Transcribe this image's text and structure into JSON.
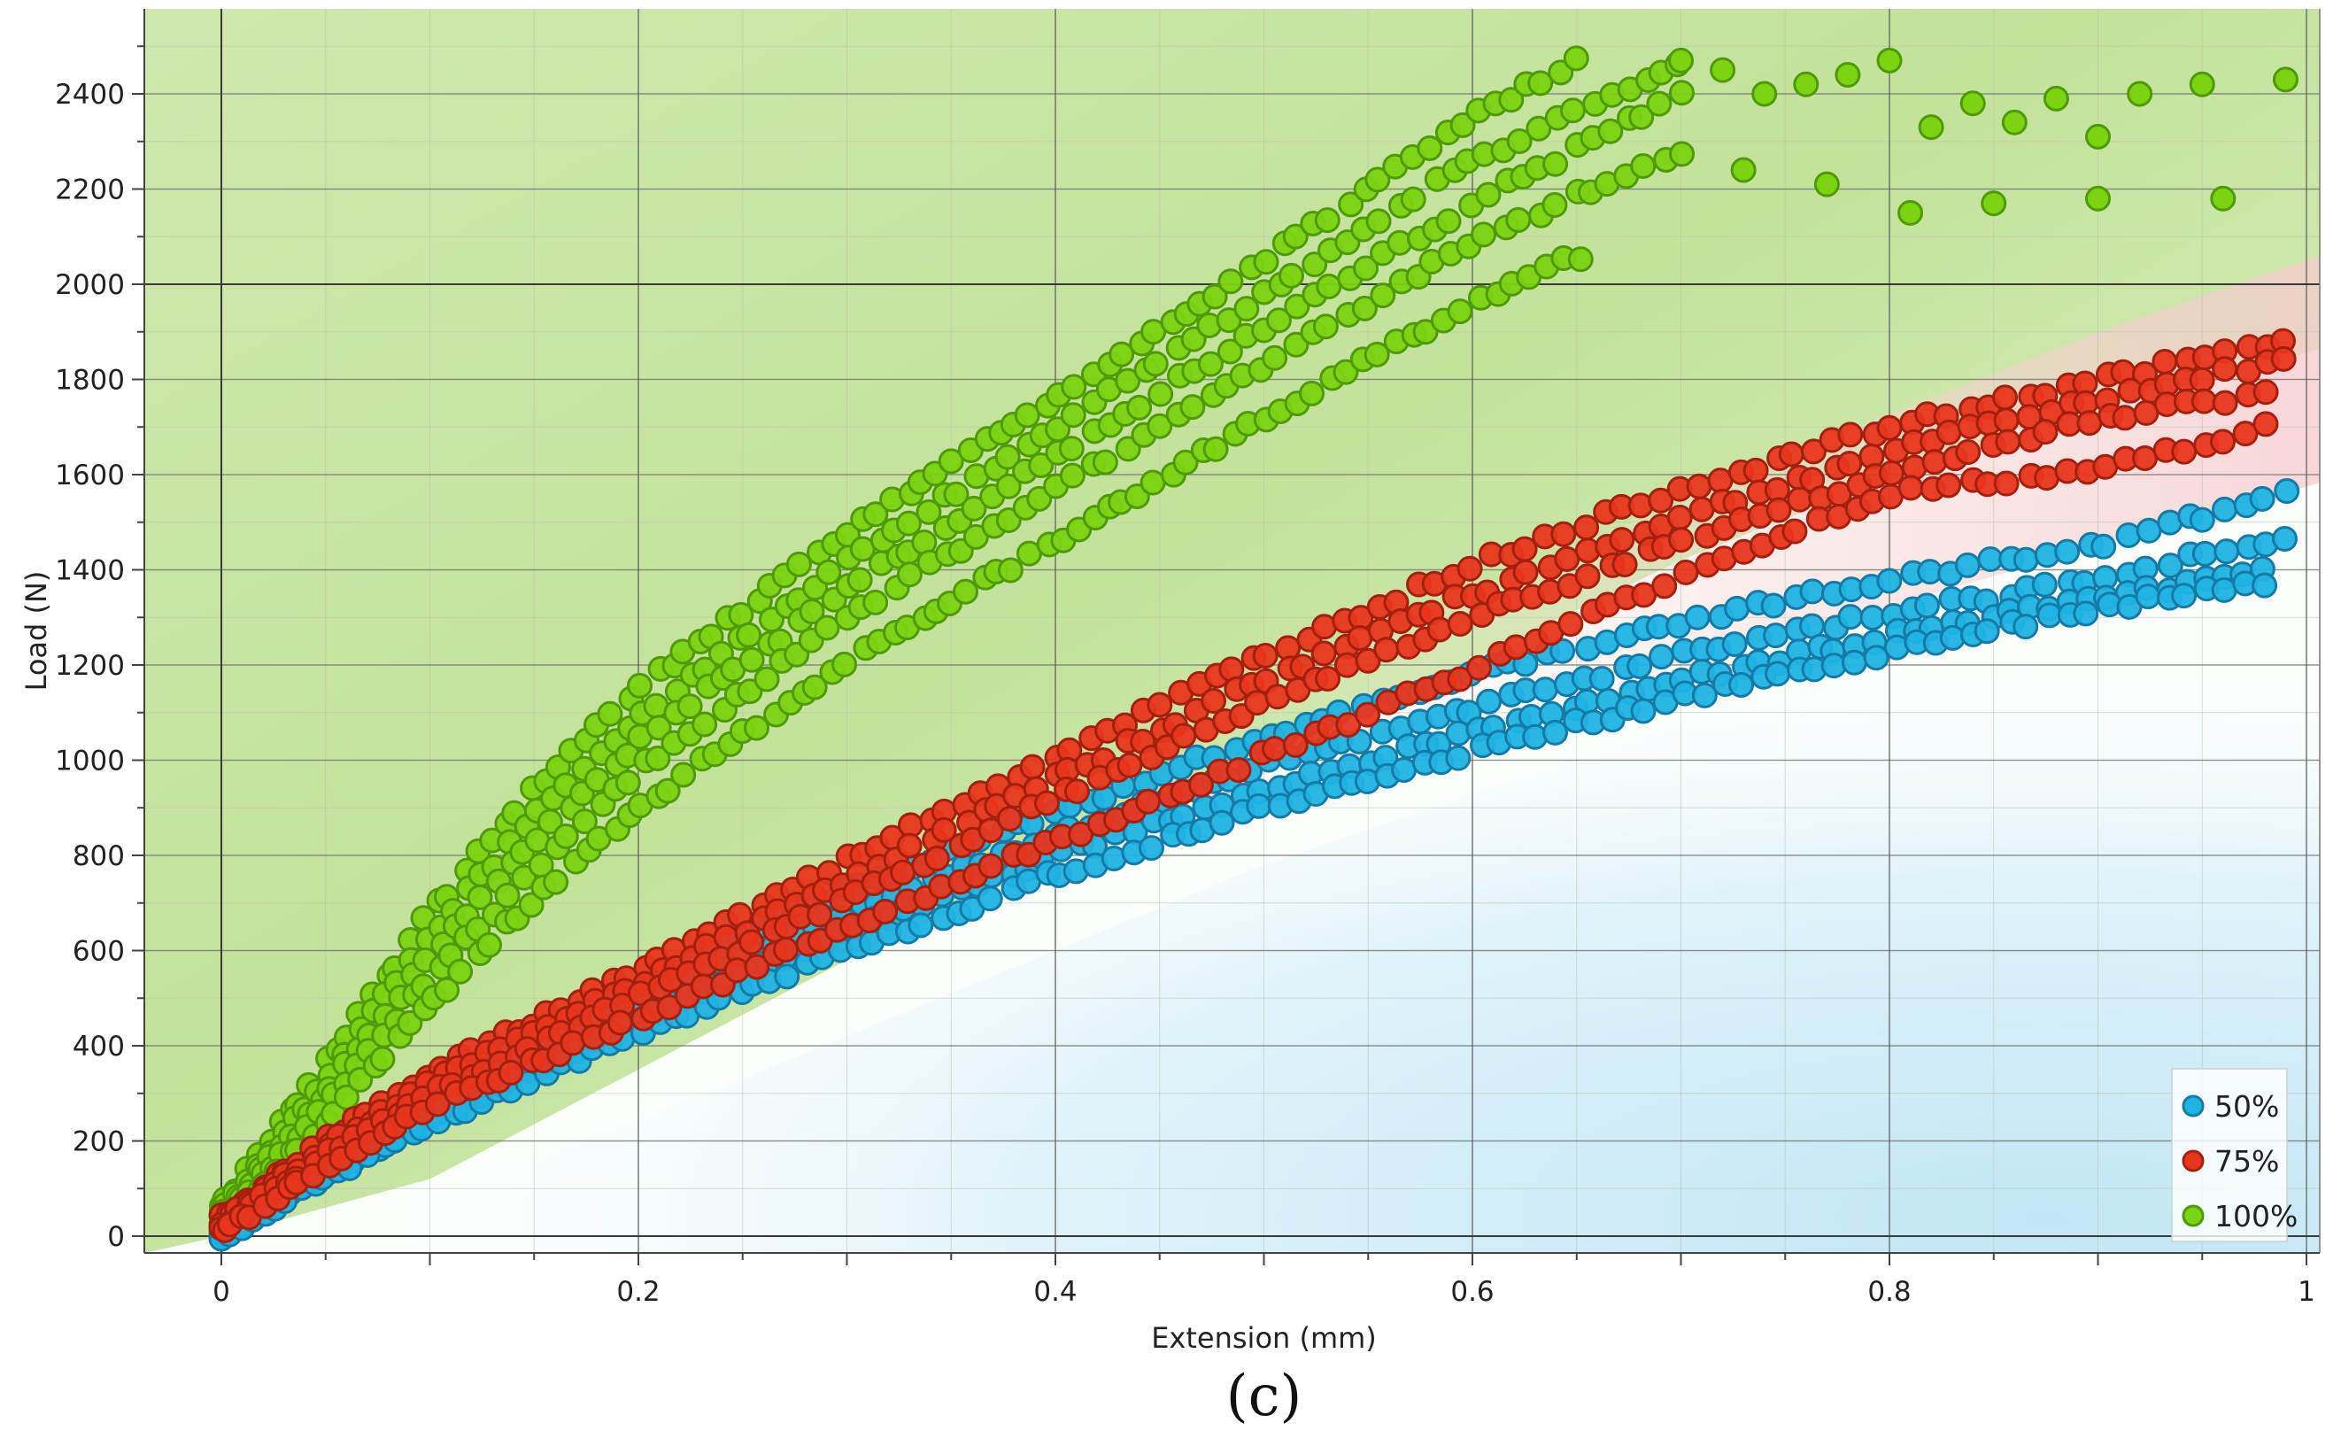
{
  "panel_label": "(c)",
  "colors": {
    "series_50": "#1fb3e3",
    "series_75": "#e8361e",
    "series_100": "#7bd311",
    "series_50_edge": "#167aa6",
    "series_75_edge": "#a3200f",
    "series_100_edge": "#4e9a0a"
  },
  "chart_data": {
    "type": "scatter",
    "title": "",
    "xlabel": "Extension (mm)",
    "ylabel": "Load (N)",
    "xlim": [
      -0.06,
      1.02
    ],
    "ylim": [
      -40,
      2570
    ],
    "x_ticks": [
      0,
      0.2,
      0.4,
      0.6,
      0.8,
      1
    ],
    "x_tick_labels": [
      "0",
      "0.2",
      "0.4",
      "0.6",
      "0.8",
      "1"
    ],
    "y_ticks": [
      0,
      200,
      400,
      600,
      800,
      1000,
      1200,
      1400,
      1600,
      1800,
      2000,
      2200,
      2400
    ],
    "y_tick_labels": [
      "0",
      "200",
      "400",
      "600",
      "800",
      "1000",
      "1200",
      "1400",
      "1600",
      "1800",
      "2000",
      "2200",
      "2400"
    ],
    "grid": true,
    "legend_position": "bottom-right",
    "legend": [
      "50%",
      "75%",
      "100%"
    ],
    "series": [
      {
        "name": "50%",
        "color": "#1fb3e3",
        "curves": [
          {
            "x": [
              0,
              0.05,
              0.1,
              0.2,
              0.3,
              0.4,
              0.5,
              0.6,
              0.7,
              0.8,
              0.9,
              0.99
            ],
            "y": [
              0,
              150,
              290,
              530,
              730,
              890,
              1050,
              1180,
              1290,
              1380,
              1450,
              1560
            ]
          },
          {
            "x": [
              0,
              0.05,
              0.1,
              0.2,
              0.3,
              0.4,
              0.5,
              0.6,
              0.7,
              0.8,
              0.9,
              0.99
            ],
            "y": [
              0,
              140,
              270,
              490,
              680,
              840,
              990,
              1110,
              1220,
              1310,
              1380,
              1470
            ]
          },
          {
            "x": [
              0,
              0.05,
              0.1,
              0.2,
              0.3,
              0.4,
              0.5,
              0.6,
              0.7,
              0.8,
              0.9,
              0.98
            ],
            "y": [
              0,
              130,
              250,
              460,
              640,
              800,
              940,
              1060,
              1170,
              1260,
              1340,
              1400
            ]
          },
          {
            "x": [
              0,
              0.05,
              0.1,
              0.2,
              0.3,
              0.4,
              0.5,
              0.6,
              0.7,
              0.8,
              0.9,
              0.98
            ],
            "y": [
              0,
              120,
              235,
              430,
              600,
              760,
              900,
              1020,
              1130,
              1230,
              1320,
              1370
            ]
          }
        ]
      },
      {
        "name": "75%",
        "color": "#e8361e",
        "curves": [
          {
            "x": [
              0,
              0.05,
              0.1,
              0.2,
              0.3,
              0.4,
              0.5,
              0.6,
              0.7,
              0.8,
              0.9,
              0.99
            ],
            "y": [
              40,
              200,
              340,
              560,
              790,
              1010,
              1220,
              1410,
              1570,
              1700,
              1800,
              1880
            ]
          },
          {
            "x": [
              0,
              0.05,
              0.1,
              0.2,
              0.3,
              0.4,
              0.5,
              0.6,
              0.7,
              0.8,
              0.9,
              0.99
            ],
            "y": [
              30,
              185,
              320,
              530,
              750,
              960,
              1170,
              1350,
              1510,
              1650,
              1760,
              1840
            ]
          },
          {
            "x": [
              0,
              0.05,
              0.1,
              0.2,
              0.3,
              0.4,
              0.5,
              0.6,
              0.7,
              0.8,
              0.9,
              0.98
            ],
            "y": [
              20,
              170,
              300,
              500,
              710,
              920,
              1120,
              1300,
              1460,
              1600,
              1720,
              1770
            ]
          },
          {
            "x": [
              0,
              0.05,
              0.1,
              0.2,
              0.3,
              0.35,
              0.4,
              0.5,
              0.6,
              0.7,
              0.8,
              0.9,
              0.98
            ],
            "y": [
              10,
              150,
              270,
              460,
              650,
              740,
              830,
              1010,
              1190,
              1390,
              1560,
              1610,
              1700
            ]
          }
        ]
      },
      {
        "name": "100%",
        "color": "#7bd311",
        "curves": [
          {
            "x": [
              0,
              0.05,
              0.1,
              0.15,
              0.2,
              0.3,
              0.4,
              0.5,
              0.6,
              0.65
            ],
            "y": [
              60,
              360,
              680,
              940,
              1150,
              1480,
              1760,
              2050,
              2350,
              2470
            ]
          },
          {
            "x": [
              0,
              0.05,
              0.1,
              0.15,
              0.2,
              0.3,
              0.4,
              0.5,
              0.6,
              0.7
            ],
            "y": [
              50,
              330,
              630,
              880,
              1090,
              1420,
              1700,
              1980,
              2260,
              2460
            ]
          },
          {
            "x": [
              0,
              0.05,
              0.1,
              0.15,
              0.2,
              0.3,
              0.4,
              0.5,
              0.6,
              0.7
            ],
            "y": [
              40,
              300,
              590,
              830,
              1040,
              1360,
              1640,
              1910,
              2170,
              2400
            ]
          },
          {
            "x": [
              0,
              0.05,
              0.1,
              0.15,
              0.2,
              0.3,
              0.4,
              0.5,
              0.6,
              0.7
            ],
            "y": [
              30,
              270,
              540,
              770,
              980,
              1300,
              1570,
              1830,
              2090,
              2280
            ]
          },
          {
            "x": [
              0,
              0.05,
              0.1,
              0.15,
              0.2,
              0.3,
              0.4,
              0.5,
              0.6,
              0.65
            ],
            "y": [
              20,
              240,
              490,
              710,
              900,
              1210,
              1460,
              1720,
              1960,
              2060
            ]
          }
        ],
        "scatter_tail": {
          "x": [
            0.7,
            0.72,
            0.74,
            0.76,
            0.78,
            0.8,
            0.82,
            0.84,
            0.86,
            0.88,
            0.9,
            0.92,
            0.95,
            0.99,
            0.73,
            0.77,
            0.81,
            0.85,
            0.9,
            0.96
          ],
          "y": [
            2470,
            2450,
            2400,
            2420,
            2440,
            2470,
            2330,
            2380,
            2340,
            2390,
            2310,
            2400,
            2420,
            2430,
            2240,
            2210,
            2150,
            2170,
            2180,
            2180
          ]
        }
      }
    ]
  }
}
